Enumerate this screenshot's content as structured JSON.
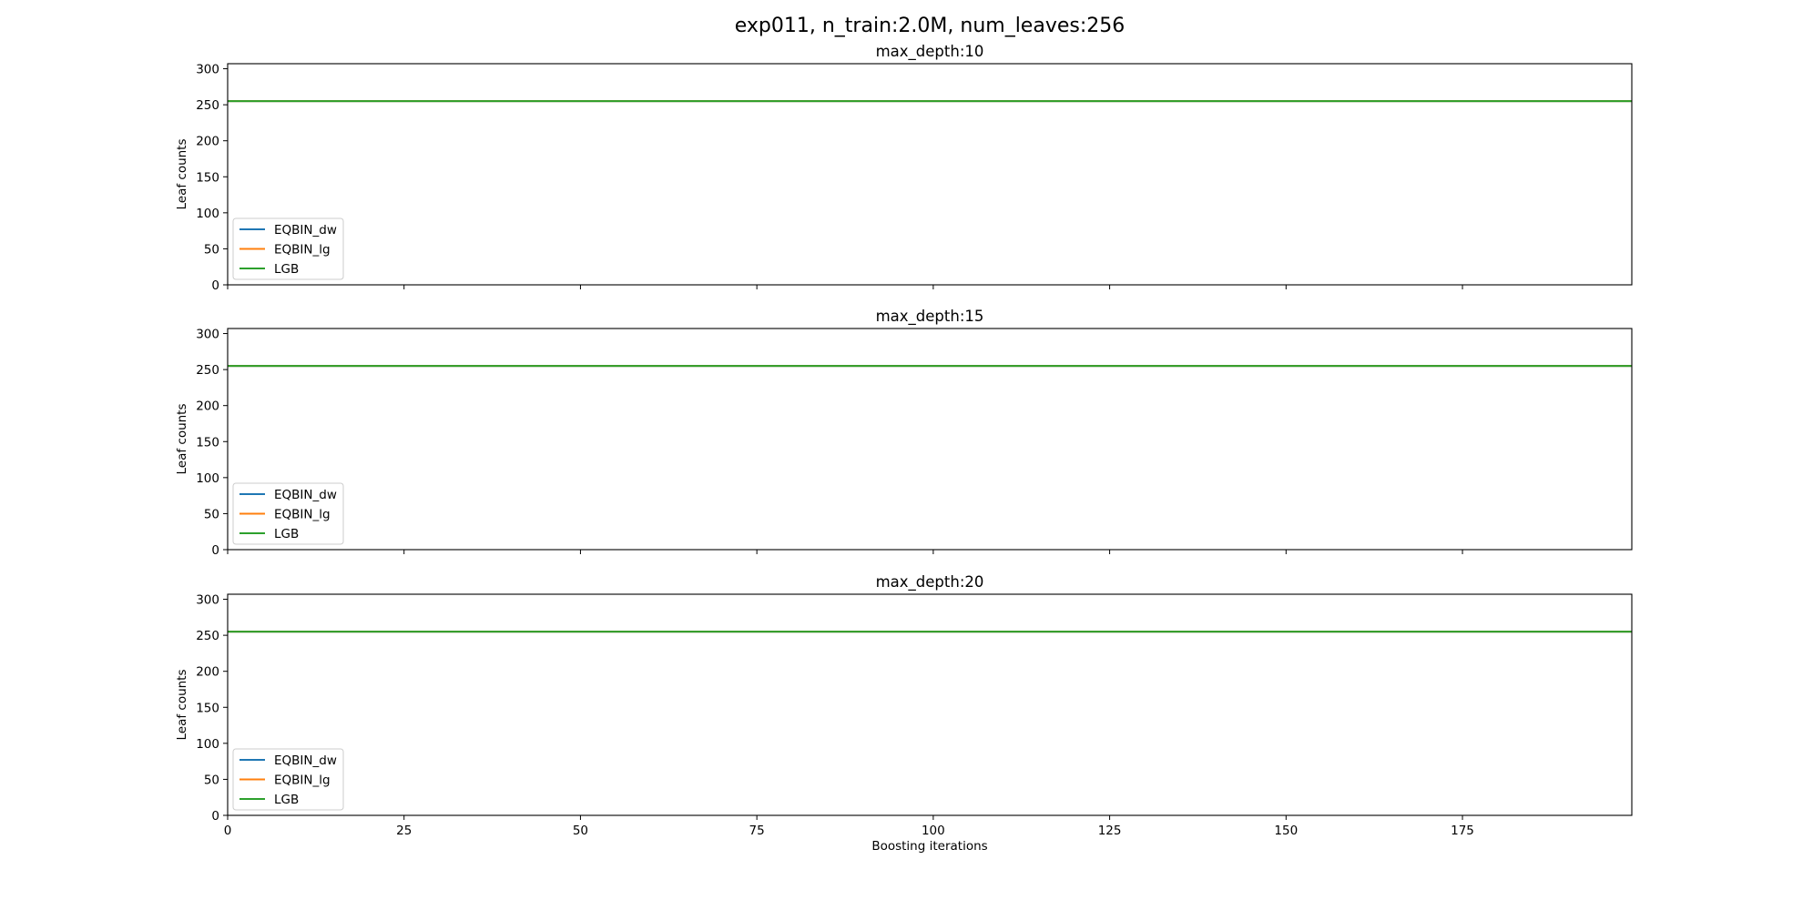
{
  "figure": {
    "title": "exp011, n_train:2.0M, num_leaves:256",
    "xlabel": "Boosting iterations"
  },
  "chart_data": [
    {
      "type": "line",
      "title": "max_depth:10",
      "xlabel": "",
      "ylabel": "Leaf counts",
      "xlim": [
        0,
        199
      ],
      "ylim": [
        0,
        307
      ],
      "xticks": [
        0,
        25,
        50,
        75,
        100,
        125,
        150,
        175
      ],
      "yticks": [
        0,
        50,
        100,
        150,
        200,
        250,
        300
      ],
      "show_xtick_labels": false,
      "grid": false,
      "legend_position": "lower left",
      "series": [
        {
          "name": "EQBIN_dw",
          "color": "#1f77b4",
          "x": [
            0,
            199
          ],
          "y": [
            255,
            255
          ]
        },
        {
          "name": "EQBIN_lg",
          "color": "#ff7f0e",
          "x": [
            0,
            199
          ],
          "y": [
            255,
            255
          ]
        },
        {
          "name": "LGB",
          "color": "#2ca02c",
          "x": [
            0,
            199
          ],
          "y": [
            255,
            255
          ]
        }
      ]
    },
    {
      "type": "line",
      "title": "max_depth:15",
      "xlabel": "",
      "ylabel": "Leaf counts",
      "xlim": [
        0,
        199
      ],
      "ylim": [
        0,
        307
      ],
      "xticks": [
        0,
        25,
        50,
        75,
        100,
        125,
        150,
        175
      ],
      "yticks": [
        0,
        50,
        100,
        150,
        200,
        250,
        300
      ],
      "show_xtick_labels": false,
      "grid": false,
      "legend_position": "lower left",
      "series": [
        {
          "name": "EQBIN_dw",
          "color": "#1f77b4",
          "x": [
            0,
            199
          ],
          "y": [
            255,
            255
          ]
        },
        {
          "name": "EQBIN_lg",
          "color": "#ff7f0e",
          "x": [
            0,
            199
          ],
          "y": [
            255,
            255
          ]
        },
        {
          "name": "LGB",
          "color": "#2ca02c",
          "x": [
            0,
            199
          ],
          "y": [
            255,
            255
          ]
        }
      ]
    },
    {
      "type": "line",
      "title": "max_depth:20",
      "xlabel": "Boosting iterations",
      "ylabel": "Leaf counts",
      "xlim": [
        0,
        199
      ],
      "ylim": [
        0,
        307
      ],
      "xticks": [
        0,
        25,
        50,
        75,
        100,
        125,
        150,
        175
      ],
      "yticks": [
        0,
        50,
        100,
        150,
        200,
        250,
        300
      ],
      "show_xtick_labels": true,
      "grid": false,
      "legend_position": "lower left",
      "series": [
        {
          "name": "EQBIN_dw",
          "color": "#1f77b4",
          "x": [
            0,
            199
          ],
          "y": [
            255,
            255
          ]
        },
        {
          "name": "EQBIN_lg",
          "color": "#ff7f0e",
          "x": [
            0,
            199
          ],
          "y": [
            255,
            255
          ]
        },
        {
          "name": "LGB",
          "color": "#2ca02c",
          "x": [
            0,
            199
          ],
          "y": [
            255,
            255
          ]
        }
      ]
    }
  ]
}
